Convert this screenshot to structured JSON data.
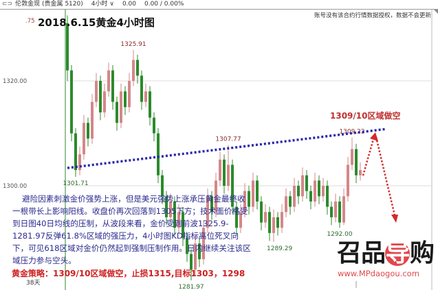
{
  "topbar": {
    "symbol": "伦敦金现 (贵金属 5120)",
    "period": "4小时 ∨",
    "price": "0.00",
    "change": "0.00 / 0.00%"
  },
  "notice": "账号没有该合约行情数据授权，数据不会更新",
  "title": "2018.6.15黄金4小时图",
  "paragraph": "避险因素刺激金价强势上涨，但是美元强势上涨承压黄金最终收一根带长上影响阳线。收盘价再次回落到1305下方；技术面价格受到日图40日均线的压制，从波段来看，金价受到前波1325.9-1281.97反弹61.8%区域的强压力，4小时图KD指标高位死叉向下，可见618区域对金价仍然起到强制压制作用。日内继续关注该区域压力参与空头。",
  "strategy": "黄金策略：1309/10区域做空，止损1315,目标1303，1298",
  "annotation": "1309/10区域做空",
  "days_label": "38天",
  "logo": {
    "text_a": "召品",
    "text_b": "导",
    "text_c": "购",
    "site": "www.MPdaogou.com"
  },
  "colors": {
    "up": "#d4878a",
    "down": "#2c8a2c",
    "trendline": "#2a2aa8",
    "arrow": "#d42a2a",
    "text": "#2b2b8f",
    "strategy": "#d02020"
  },
  "chart_data": {
    "type": "candlestick",
    "y_ticks": [
      {
        "value": 1320,
        "label": "1320.00"
      },
      {
        "value": 1300,
        "label": "1300.00"
      }
    ],
    "top_tick_partial": ".75",
    "grid": true,
    "ohlc": [
      [
        1331,
        1332.5,
        1320,
        1322
      ],
      [
        1322,
        1323,
        1308.5,
        1310
      ],
      [
        1310,
        1311,
        1301.71,
        1303
      ],
      [
        1303,
        1307.5,
        1302,
        1306
      ],
      [
        1306,
        1313.5,
        1305,
        1312
      ],
      [
        1312,
        1313,
        1307.5,
        1309
      ],
      [
        1309,
        1317.5,
        1308,
        1316
      ],
      [
        1316,
        1321.5,
        1315,
        1320
      ],
      [
        1320,
        1321,
        1312.5,
        1314
      ],
      [
        1314,
        1319.5,
        1313,
        1318
      ],
      [
        1318,
        1323.5,
        1317,
        1322
      ],
      [
        1322,
        1323,
        1314.5,
        1316
      ],
      [
        1316,
        1317,
        1310.5,
        1312
      ],
      [
        1312,
        1319.5,
        1311,
        1318
      ],
      [
        1318,
        1319,
        1313.5,
        1315
      ],
      [
        1315,
        1321.5,
        1314,
        1320
      ],
      [
        1320,
        1325.91,
        1319,
        1324
      ],
      [
        1324,
        1325,
        1319.5,
        1321
      ],
      [
        1321,
        1322,
        1314.5,
        1316
      ],
      [
        1316,
        1319.5,
        1315,
        1318
      ],
      [
        1318,
        1319,
        1311.5,
        1313
      ],
      [
        1313,
        1314,
        1308.5,
        1310
      ],
      [
        1310,
        1311,
        1300.5,
        1302
      ],
      [
        1302,
        1303,
        1296.5,
        1298
      ],
      [
        1298,
        1299,
        1292.5,
        1294
      ],
      [
        1294,
        1298.5,
        1293,
        1297
      ],
      [
        1297,
        1298,
        1290.5,
        1292
      ],
      [
        1292,
        1296.5,
        1291,
        1295
      ],
      [
        1295,
        1296,
        1288.5,
        1290
      ],
      [
        1290,
        1291,
        1285.5,
        1287
      ],
      [
        1287,
        1288,
        1281.97,
        1284
      ],
      [
        1284,
        1290.5,
        1283,
        1289
      ],
      [
        1289,
        1290,
        1284.5,
        1286
      ],
      [
        1286,
        1293.5,
        1285,
        1292
      ],
      [
        1292,
        1299.5,
        1291,
        1298
      ],
      [
        1298,
        1299,
        1293.5,
        1295
      ],
      [
        1295,
        1302.5,
        1294,
        1301
      ],
      [
        1301,
        1306.5,
        1300,
        1305
      ],
      [
        1305,
        1306,
        1298.5,
        1300
      ],
      [
        1300,
        1307.77,
        1299,
        1304
      ],
      [
        1304,
        1305,
        1294.5,
        1296
      ],
      [
        1296,
        1297,
        1290.5,
        1292
      ],
      [
        1292,
        1296.5,
        1291,
        1295
      ],
      [
        1295,
        1300.5,
        1294,
        1299
      ],
      [
        1299,
        1300,
        1294.5,
        1296
      ],
      [
        1296,
        1302.5,
        1295,
        1301
      ],
      [
        1301,
        1302,
        1295.5,
        1297
      ],
      [
        1297,
        1298,
        1291.5,
        1293
      ],
      [
        1293,
        1296.5,
        1292,
        1295
      ],
      [
        1295,
        1296,
        1289.5,
        1291
      ],
      [
        1291,
        1295.5,
        1289.29,
        1294
      ],
      [
        1294,
        1295,
        1290.5,
        1292
      ],
      [
        1292,
        1296.5,
        1291,
        1295
      ],
      [
        1295,
        1299.5,
        1294,
        1298
      ],
      [
        1298,
        1299,
        1294.5,
        1296
      ],
      [
        1296,
        1301.5,
        1295,
        1300
      ],
      [
        1300,
        1301,
        1296.5,
        1298
      ],
      [
        1298,
        1303.5,
        1297,
        1302
      ],
      [
        1302,
        1303,
        1297.5,
        1299
      ],
      [
        1299,
        1300,
        1295.5,
        1297
      ],
      [
        1297,
        1302.5,
        1296,
        1301
      ],
      [
        1301,
        1302,
        1296.5,
        1298
      ],
      [
        1298,
        1301.5,
        1297,
        1300
      ],
      [
        1300,
        1301,
        1294.5,
        1296
      ],
      [
        1296,
        1297,
        1292.5,
        1294
      ],
      [
        1294,
        1298.5,
        1293,
        1297
      ],
      [
        1297,
        1298,
        1292,
        1293
      ],
      [
        1293,
        1299.5,
        1292.5,
        1298
      ],
      [
        1298,
        1305.5,
        1297,
        1304
      ],
      [
        1304,
        1309.22,
        1303,
        1307
      ],
      [
        1307,
        1308,
        1300.5,
        1302
      ],
      [
        1302,
        1304.5,
        1301,
        1303
      ]
    ],
    "extreme_labels": [
      {
        "index": 2,
        "price": 1301.71,
        "label": "1301.71",
        "kind": "low"
      },
      {
        "index": 16,
        "price": 1325.91,
        "label": "1325.91",
        "kind": "high"
      },
      {
        "index": 30,
        "price": 1281.97,
        "label": "1281.97",
        "kind": "low"
      },
      {
        "index": 39,
        "price": 1307.77,
        "label": "1307.77",
        "kind": "high"
      },
      {
        "index": 50,
        "price": 1289.29,
        "label": "1289.29",
        "kind": "low"
      },
      {
        "index": 66,
        "price": 1292.0,
        "label": "1292.00",
        "kind": "low"
      },
      {
        "index": 69,
        "price": 1309.22,
        "label": "1309.22",
        "kind": "high"
      }
    ],
    "trendline": {
      "from": {
        "index": 0,
        "price": 1303.4
      },
      "to": {
        "index": 77,
        "price": 1310.8
      }
    }
  }
}
